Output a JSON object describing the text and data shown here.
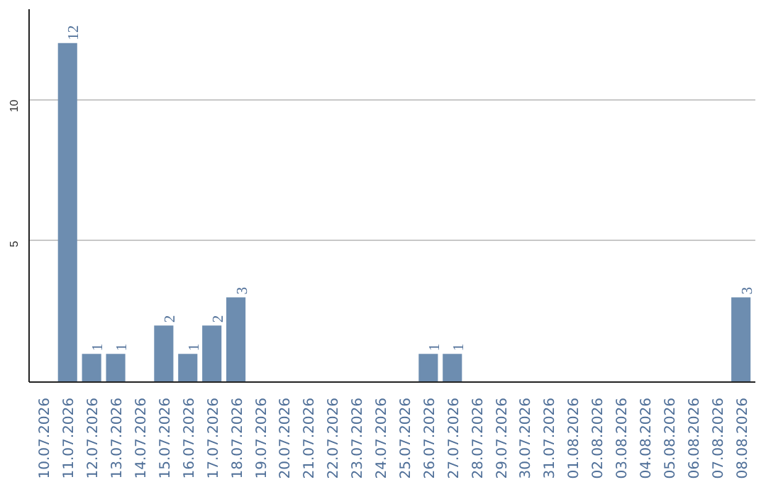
{
  "chart_data": {
    "type": "bar",
    "categories": [
      "10.07.2026",
      "11.07.2026",
      "12.07.2026",
      "13.07.2026",
      "14.07.2026",
      "15.07.2026",
      "16.07.2026",
      "17.07.2026",
      "18.07.2026",
      "19.07.2026",
      "20.07.2026",
      "21.07.2026",
      "22.07.2026",
      "23.07.2026",
      "24.07.2026",
      "25.07.2026",
      "26.07.2026",
      "27.07.2026",
      "28.07.2026",
      "29.07.2026",
      "30.07.2026",
      "31.07.2026",
      "01.08.2026",
      "02.08.2026",
      "03.08.2026",
      "04.08.2026",
      "05.08.2026",
      "06.08.2026",
      "07.08.2026",
      "08.08.2026"
    ],
    "values": [
      0,
      12,
      1,
      1,
      0,
      2,
      1,
      2,
      3,
      0,
      0,
      0,
      0,
      0,
      0,
      0,
      1,
      1,
      0,
      0,
      0,
      0,
      0,
      0,
      0,
      0,
      0,
      0,
      0,
      3
    ],
    "value_labels": [
      null,
      "12",
      "1",
      "1",
      null,
      "2",
      "1",
      "2",
      "3",
      null,
      null,
      null,
      null,
      null,
      null,
      null,
      "1",
      "1",
      null,
      null,
      null,
      null,
      null,
      null,
      null,
      null,
      null,
      null,
      null,
      "3"
    ],
    "color": "#6d8db0",
    "ylim": [
      0,
      13.2
    ],
    "yticks": [
      5,
      10
    ],
    "grid": "y"
  }
}
